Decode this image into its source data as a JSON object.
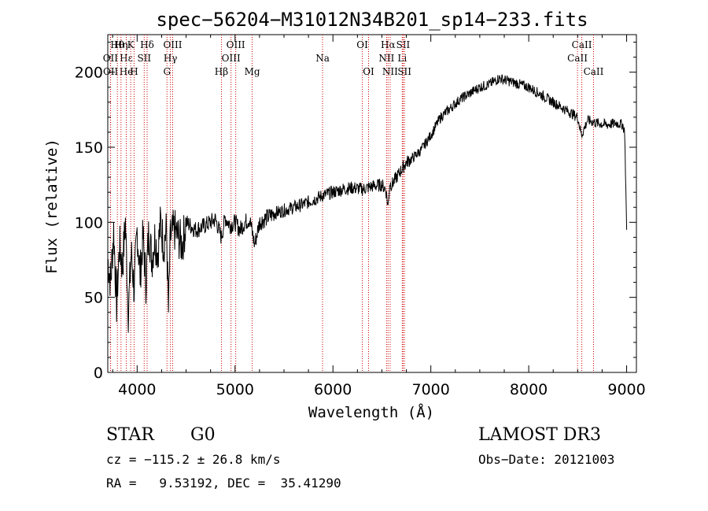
{
  "chart_data": {
    "type": "line",
    "title": "spec−56204−M31012N34B201_sp14−233.fits",
    "xlabel": "Wavelength (Å)",
    "ylabel": "Flux (relative)",
    "xlim": [
      3700,
      9100
    ],
    "ylim": [
      0,
      225
    ],
    "xticks": [
      4000,
      5000,
      6000,
      7000,
      8000,
      9000
    ],
    "yticks": [
      0,
      50,
      100,
      150,
      200
    ],
    "colors": {
      "line": "#000000",
      "marker": "#cc0000",
      "axes": "#000000"
    },
    "series": [
      {
        "name": "flux",
        "x": [
          3700,
          3730,
          3760,
          3790,
          3820,
          3850,
          3880,
          3910,
          3940,
          3970,
          4000,
          4030,
          4060,
          4090,
          4120,
          4150,
          4180,
          4210,
          4240,
          4270,
          4300,
          4320,
          4340,
          4380,
          4420,
          4460,
          4500,
          4600,
          4700,
          4800,
          4860,
          4900,
          4950,
          5000,
          5050,
          5100,
          5150,
          5200,
          5250,
          5300,
          5400,
          5500,
          5600,
          5700,
          5800,
          5900,
          6000,
          6100,
          6200,
          6300,
          6400,
          6500,
          6540,
          6563,
          6580,
          6600,
          6650,
          6700,
          6750,
          6800,
          6900,
          7000,
          7100,
          7200,
          7300,
          7400,
          7500,
          7600,
          7700,
          7800,
          7900,
          8000,
          8100,
          8200,
          8300,
          8400,
          8500,
          8540,
          8600,
          8700,
          8800,
          8900,
          8960,
          8980,
          9000
        ],
        "y": [
          75,
          60,
          95,
          45,
          85,
          70,
          100,
          40,
          80,
          55,
          95,
          65,
          90,
          60,
          95,
          75,
          90,
          80,
          100,
          85,
          95,
          40,
          90,
          95,
          90,
          85,
          100,
          95,
          98,
          102,
          90,
          103,
          98,
          100,
          95,
          100,
          102,
          85,
          100,
          102,
          106,
          108,
          110,
          112,
          115,
          118,
          120,
          122,
          123,
          122,
          124,
          125,
          122,
          110,
          126,
          125,
          130,
          135,
          140,
          142,
          148,
          158,
          170,
          176,
          182,
          186,
          190,
          192,
          196,
          194,
          192,
          190,
          186,
          182,
          178,
          174,
          170,
          158,
          168,
          166,
          165,
          166,
          165,
          160,
          95
        ]
      }
    ],
    "markers": [
      {
        "label": "Hθ",
        "wl": 3798,
        "row": 1
      },
      {
        "label": "OII",
        "wl": 3727,
        "row": 2
      },
      {
        "label": "OII",
        "wl": 3729,
        "row": 3
      },
      {
        "label": "Hε",
        "wl": 3889,
        "row": 2
      },
      {
        "label": "He",
        "wl": 3889,
        "row": 3
      },
      {
        "label": "Hη",
        "wl": 3835,
        "row": 1
      },
      {
        "label": "K",
        "wl": 3934,
        "row": 1
      },
      {
        "label": "H",
        "wl": 3969,
        "row": 3
      },
      {
        "label": "SII",
        "wl": 4072,
        "row": 2
      },
      {
        "label": "Hδ",
        "wl": 4102,
        "row": 1
      },
      {
        "label": "OIII",
        "wl": 4363,
        "row": 1
      },
      {
        "label": "Hγ",
        "wl": 4340,
        "row": 2
      },
      {
        "label": "G",
        "wl": 4305,
        "row": 3
      },
      {
        "label": "Hβ",
        "wl": 4861,
        "row": 3
      },
      {
        "label": "OIII",
        "wl": 5007,
        "row": 1
      },
      {
        "label": "OIII",
        "wl": 4959,
        "row": 2
      },
      {
        "label": "Mg",
        "wl": 5175,
        "row": 3
      },
      {
        "label": "Na",
        "wl": 5894,
        "row": 2
      },
      {
        "label": "OI",
        "wl": 6300,
        "row": 1
      },
      {
        "label": "OI",
        "wl": 6364,
        "row": 3
      },
      {
        "label": "Hα",
        "wl": 6563,
        "row": 1
      },
      {
        "label": "NII",
        "wl": 6548,
        "row": 2
      },
      {
        "label": "NII",
        "wl": 6584,
        "row": 3
      },
      {
        "label": "SII",
        "wl": 6717,
        "row": 1
      },
      {
        "label": "Li",
        "wl": 6708,
        "row": 2
      },
      {
        "label": "SII",
        "wl": 6731,
        "row": 3
      },
      {
        "label": "CaII",
        "wl": 8542,
        "row": 1
      },
      {
        "label": "CaII",
        "wl": 8498,
        "row": 2
      },
      {
        "label": "CaII",
        "wl": 8662,
        "row": 3
      }
    ]
  },
  "info": {
    "class_label": "STAR",
    "subclass": "G0",
    "survey": "LAMOST DR3",
    "cz": "cz = −115.2 ± 26.8 km/s",
    "obs_date": "Obs−Date: 20121003",
    "coords": "RA =   9.53192, DEC =  35.41290"
  }
}
